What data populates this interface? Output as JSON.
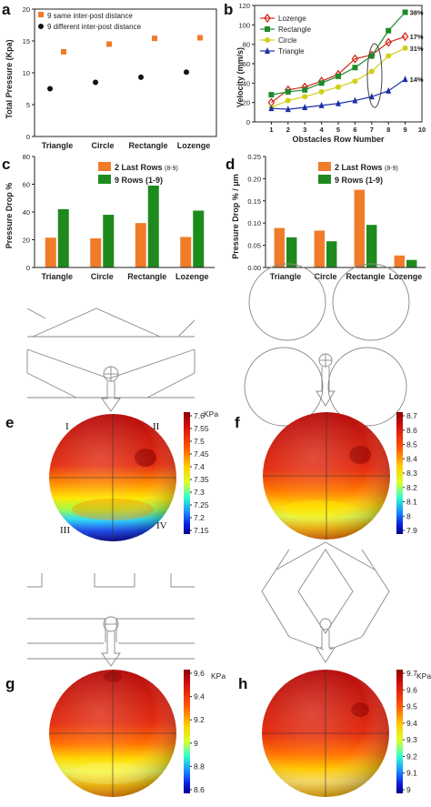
{
  "figure": {
    "panel_labels": [
      "a",
      "b",
      "c",
      "d",
      "e",
      "f",
      "g",
      "h"
    ],
    "quadrant_labels": [
      "I",
      "II",
      "III",
      "IV"
    ]
  },
  "colors": {
    "orange": "#f07b29",
    "green": "#1e8a1e",
    "black": "#111111",
    "lozenge": "#d42a1c",
    "rectangle": "#1f8a2a",
    "circle": "#cfcf19",
    "triangle": "#1a2fa8"
  },
  "chart_data": [
    {
      "panel": "a",
      "type": "scatter",
      "categories": [
        "Triangle",
        "Circle",
        "Rectangle",
        "Lozenge"
      ],
      "series": [
        {
          "name": "9 same inter-post distance",
          "values": [
            13.3,
            14.5,
            15.4,
            15.5
          ],
          "marker": "square",
          "color": "#f07b29"
        },
        {
          "name": "9 different inter-post distance",
          "values": [
            7.5,
            8.5,
            9.3,
            10.1
          ],
          "marker": "circle",
          "color": "#111111"
        }
      ],
      "ylabel": "Total Pressure (Kpa)",
      "ylim": [
        0,
        20
      ],
      "yticks": [
        0,
        5,
        10,
        15,
        20
      ],
      "legend": "top-left"
    },
    {
      "panel": "b",
      "type": "line",
      "x": [
        1,
        2,
        3,
        4,
        5,
        6,
        7,
        8,
        9
      ],
      "series": [
        {
          "name": "Lozenge",
          "values": [
            20,
            33,
            36,
            42,
            49,
            65,
            69,
            82,
            88
          ],
          "color": "#d42a1c",
          "marker": "diamond"
        },
        {
          "name": "Rectangle",
          "values": [
            28,
            31,
            33,
            40,
            47,
            56,
            68,
            94,
            113
          ],
          "color": "#1f8a2a",
          "marker": "square"
        },
        {
          "name": "Circle",
          "values": [
            15,
            22,
            26,
            31,
            36,
            42,
            52,
            68,
            76
          ],
          "color": "#cfcf19",
          "marker": "circle"
        },
        {
          "name": "Triangle",
          "values": [
            14,
            13,
            15,
            17,
            19,
            22,
            26,
            32,
            44
          ],
          "color": "#1a2fa8",
          "marker": "triangle"
        }
      ],
      "annotations": [
        "38%",
        "17%",
        "31%",
        "14%"
      ],
      "xlabel": "Obstacles Row Number",
      "ylabel": "Velocity (mm/s)",
      "xlim": [
        0,
        10
      ],
      "ylim": [
        0,
        120
      ],
      "yticks": [
        0,
        20,
        40,
        60,
        80,
        100,
        120
      ],
      "legend": "top-left"
    },
    {
      "panel": "c",
      "type": "bar",
      "categories": [
        "Triangle",
        "Circle",
        "Rectangle",
        "Lozenge"
      ],
      "series": [
        {
          "name": "2 Last Rows",
          "name_suffix": "(8-9)",
          "values": [
            21.5,
            21,
            32,
            22
          ],
          "color": "#f07b29"
        },
        {
          "name": "9 Rows (1-9)",
          "values": [
            42,
            38,
            59,
            41
          ],
          "color": "#1e8a1e"
        }
      ],
      "ylabel": "Pressure Drop %",
      "ylim": [
        0,
        80
      ],
      "yticks": [
        0,
        20,
        40,
        60,
        80
      ],
      "legend": "top-right"
    },
    {
      "panel": "d",
      "type": "bar",
      "categories": [
        "Triangle",
        "Circle",
        "Rectangle",
        "Lozenge"
      ],
      "series": [
        {
          "name": "2 Last Rows",
          "name_suffix": "(8-9)",
          "values": [
            0.089,
            0.083,
            0.175,
            0.027
          ],
          "color": "#f07b29"
        },
        {
          "name": "9 Rows (1-9)",
          "values": [
            0.068,
            0.059,
            0.096,
            0.017
          ],
          "color": "#1e8a1e"
        }
      ],
      "ylabel": "Pressure Drop % / μm",
      "ylim": [
        0,
        0.25
      ],
      "yticks": [
        "0.00",
        "0.05",
        "0.10",
        "0.15",
        "0.20",
        "0.25"
      ],
      "legend": "top-right"
    }
  ],
  "colorbars": {
    "e": {
      "unit": "KPa",
      "ticks": [
        "7.6",
        "7.55",
        "7.5",
        "7.45",
        "7.4",
        "7.35",
        "7.3",
        "7.25",
        "7.2",
        "7.15"
      ]
    },
    "f": {
      "unit": "KPa",
      "ticks": [
        "8.7",
        "8.6",
        "8.5",
        "8.4",
        "8.3",
        "8.2",
        "8.1",
        "8",
        "7.9"
      ]
    },
    "g": {
      "unit": "KPa",
      "ticks": [
        "9.6",
        "9.4",
        "9.2",
        "9",
        "8.8",
        "8.6"
      ]
    },
    "h": {
      "unit": "KPa",
      "ticks": [
        "9.7",
        "9.6",
        "9.5",
        "9.4",
        "9.3",
        "9.2",
        "9.1",
        "9"
      ]
    }
  }
}
